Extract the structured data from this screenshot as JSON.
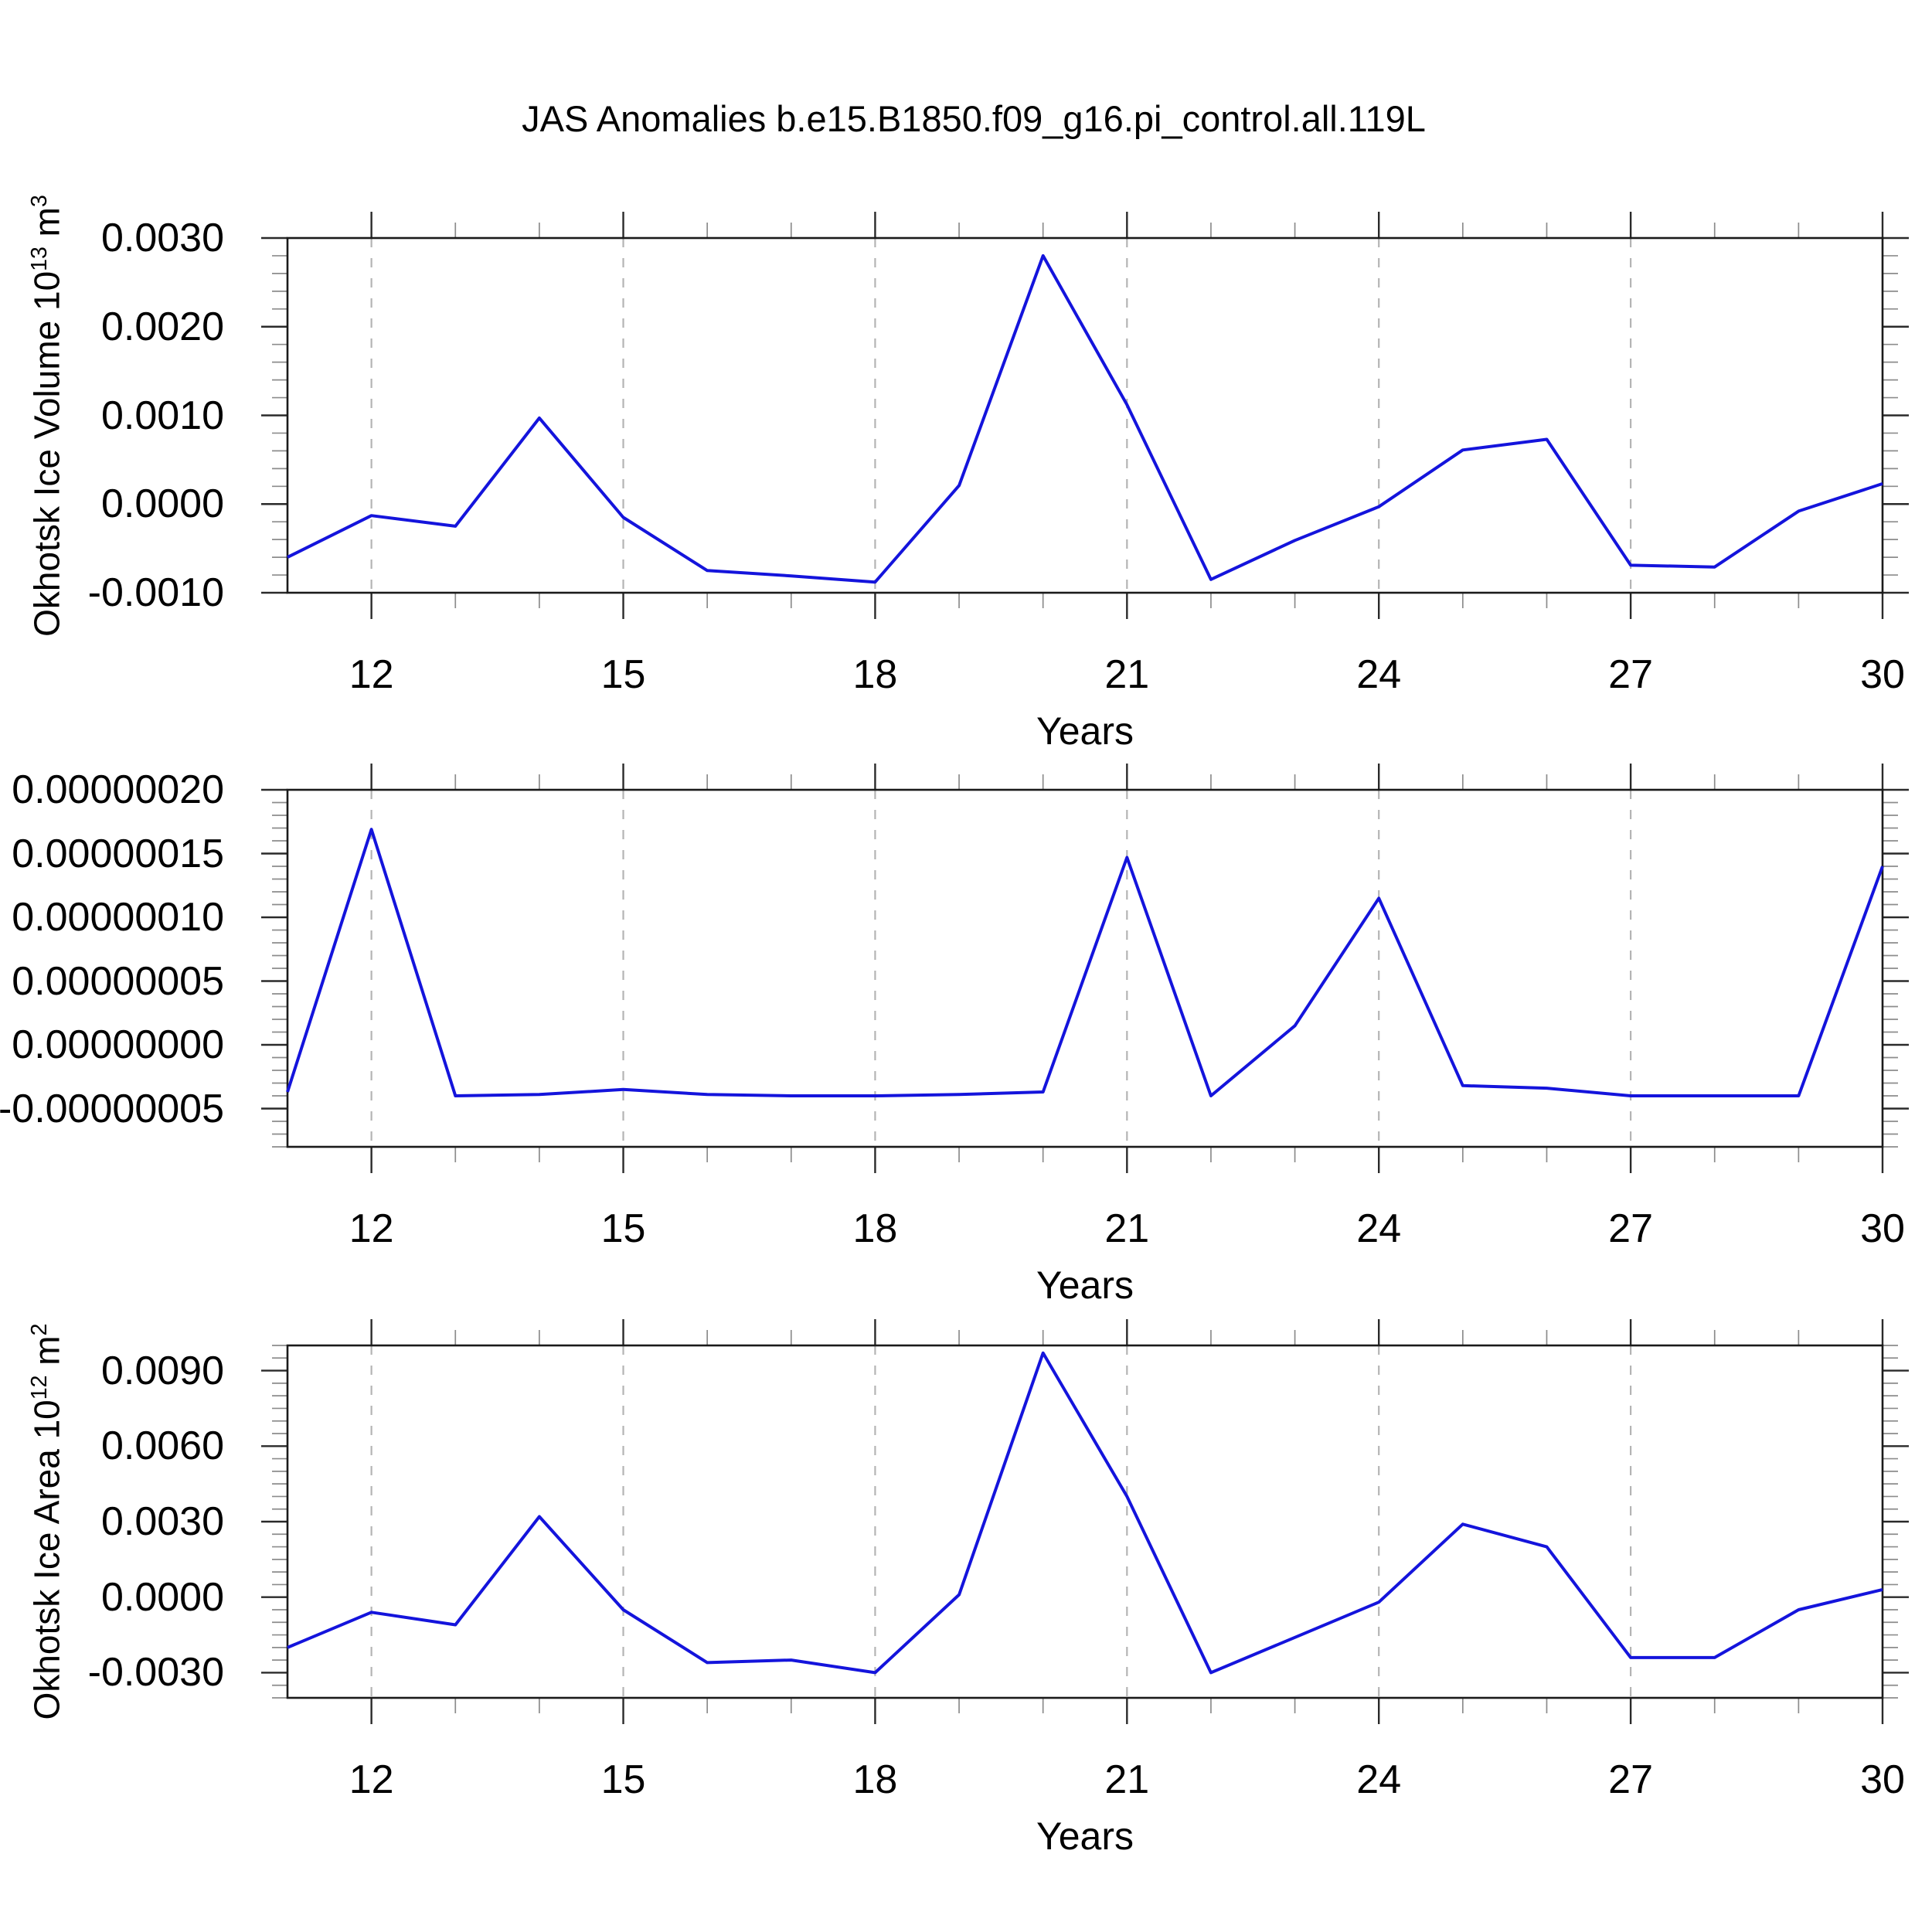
{
  "title": "JAS Anomalies b.e15.B1850.f09_g16.pi_control.all.119L",
  "colors": {
    "line": "#1414dc",
    "grid": "#b4b4b4",
    "frame": "#1a1a1a",
    "major_tick": "#2a2a2a",
    "minor_tick": "#8c8c8c",
    "text": "#000000"
  },
  "chart_data": [
    {
      "type": "line",
      "name": "okhotsk-ice-volume-anomaly",
      "ylabel": "Okhotsk Ice Volume 10^13 m^3",
      "xlabel": "Years",
      "x": [
        11,
        12,
        13,
        14,
        15,
        16,
        17,
        18,
        19,
        20,
        21,
        22,
        23,
        24,
        25,
        26,
        27,
        28,
        29,
        30
      ],
      "values": [
        -0.0006,
        -0.00013,
        -0.00025,
        0.00097,
        -0.00015,
        -0.00075,
        -0.00081,
        -0.00088,
        0.00021,
        0.0028,
        0.00112,
        -0.00085,
        -0.00041,
        -3e-05,
        0.00061,
        0.00073,
        -0.00069,
        -0.00071,
        -8e-05,
        0.00023
      ],
      "ylim": [
        -0.001,
        0.003
      ],
      "yticks": [
        {
          "label": "0.0030",
          "value": 0.003
        },
        {
          "label": "0.0020",
          "value": 0.002
        },
        {
          "label": "0.0010",
          "value": 0.001
        },
        {
          "label": "0.0000",
          "value": 0.0
        },
        {
          "label": "-0.0010",
          "value": -0.001
        }
      ],
      "ytick_minor_step": 0.0002,
      "xlim": [
        11,
        30
      ],
      "xticks_major": [
        12,
        15,
        18,
        21,
        24,
        27,
        30
      ],
      "grid_years": [
        12,
        15,
        18,
        21,
        24,
        27
      ],
      "legend": "none",
      "grid": "vertical-dashed"
    },
    {
      "type": "line",
      "name": "okhotsk-middle-series-anomaly",
      "ylabel": "",
      "xlabel": "Years",
      "x": [
        11,
        12,
        13,
        14,
        15,
        16,
        17,
        18,
        19,
        20,
        21,
        22,
        23,
        24,
        25,
        26,
        27,
        28,
        29,
        30
      ],
      "values": [
        -3.7e-08,
        1.69e-07,
        -4e-08,
        -3.9e-08,
        -3.5e-08,
        -3.9e-08,
        -4e-08,
        -4e-08,
        -3.9e-08,
        -3.7e-08,
        1.47e-07,
        -4e-08,
        1.5e-08,
        1.15e-07,
        -3.2e-08,
        -3.4e-08,
        -4e-08,
        -4e-08,
        -4e-08,
        1.4e-07
      ],
      "ylim": [
        -8e-08,
        2e-07
      ],
      "yticks": [
        {
          "label": "0.00000020",
          "value": 2e-07
        },
        {
          "label": "0.00000015",
          "value": 1.5e-07
        },
        {
          "label": "0.00000010",
          "value": 1e-07
        },
        {
          "label": "0.00000005",
          "value": 5e-08
        },
        {
          "label": "0.00000000",
          "value": 0.0
        },
        {
          "label": "-0.00000005",
          "value": -5e-08
        }
      ],
      "ytick_minor_step": 1e-08,
      "xlim": [
        11,
        30
      ],
      "xticks_major": [
        12,
        15,
        18,
        21,
        24,
        27,
        30
      ],
      "grid_years": [
        12,
        15,
        18,
        21,
        24,
        27
      ],
      "legend": "none",
      "grid": "vertical-dashed"
    },
    {
      "type": "line",
      "name": "okhotsk-ice-area-anomaly",
      "ylabel": "Okhotsk Ice Area 10^12 m^2",
      "xlabel": "Years",
      "x": [
        11,
        12,
        13,
        14,
        15,
        16,
        17,
        18,
        19,
        20,
        21,
        22,
        23,
        24,
        25,
        26,
        27,
        28,
        29,
        30
      ],
      "values": [
        -0.002,
        -0.0006,
        -0.0011,
        0.0032,
        -0.0005,
        -0.0026,
        -0.0025,
        -0.003,
        0.0001,
        0.0097,
        0.004,
        -0.003,
        -0.0016,
        -0.0002,
        0.0029,
        0.002,
        -0.0024,
        -0.0024,
        -0.0005,
        0.0003
      ],
      "ylim": [
        -0.004,
        0.01
      ],
      "yticks": [
        {
          "label": "0.0090",
          "value": 0.009
        },
        {
          "label": "0.0060",
          "value": 0.006
        },
        {
          "label": "0.0030",
          "value": 0.003
        },
        {
          "label": "0.0000",
          "value": 0.0
        },
        {
          "label": "-0.0030",
          "value": -0.003
        }
      ],
      "ytick_minor_step": 0.0005,
      "xlim": [
        11,
        30
      ],
      "xticks_major": [
        12,
        15,
        18,
        21,
        24,
        27,
        30
      ],
      "grid_years": [
        12,
        15,
        18,
        21,
        24,
        27
      ],
      "legend": "none",
      "grid": "vertical-dashed"
    }
  ]
}
